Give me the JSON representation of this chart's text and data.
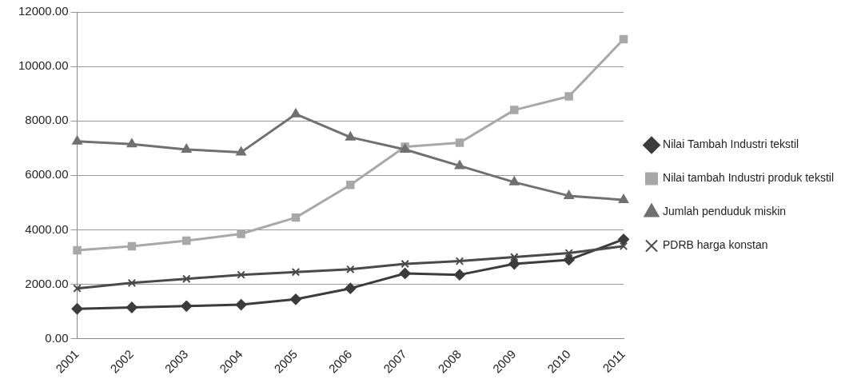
{
  "chart_data": {
    "type": "line",
    "categories": [
      "2001",
      "2002",
      "2003",
      "2004",
      "2005",
      "2006",
      "2007",
      "2008",
      "2009",
      "2010",
      "2011"
    ],
    "series": [
      {
        "name": "Nilai Tambah Industri tekstil",
        "color": "#3c3c3c",
        "marker": "diamond",
        "values": [
          1100,
          1150,
          1200,
          1250,
          1450,
          1850,
          2400,
          2350,
          2750,
          2900,
          3650
        ]
      },
      {
        "name": "Nilai tambah Industri produk tekstil",
        "color": "#a8a8a8",
        "marker": "square",
        "values": [
          3250,
          3400,
          3600,
          3850,
          4450,
          5650,
          7050,
          7200,
          8400,
          8900,
          11000
        ]
      },
      {
        "name": "Jumlah penduduk miskin",
        "color": "#707070",
        "marker": "triangle",
        "values": [
          7250,
          7150,
          6950,
          6850,
          8250,
          7400,
          6950,
          6350,
          5750,
          5250,
          5100
        ]
      },
      {
        "name": "PDRB harga konstan",
        "color": "#4a4a4a",
        "marker": "cross",
        "values": [
          1850,
          2050,
          2200,
          2350,
          2450,
          2550,
          2750,
          2850,
          3000,
          3150,
          3400
        ]
      }
    ],
    "ylim": [
      0,
      12000
    ],
    "yticks": [
      {
        "value": 0,
        "label": "0.00"
      },
      {
        "value": 2000,
        "label": "2000.00"
      },
      {
        "value": 4000,
        "label": "4000.00"
      },
      {
        "value": 6000,
        "label": "6000.00"
      },
      {
        "value": 8000,
        "label": "8000.00"
      },
      {
        "value": 10000,
        "label": "10000.00"
      },
      {
        "value": 12000,
        "label": "12000.00"
      }
    ],
    "grid": "y",
    "legend": "right"
  }
}
